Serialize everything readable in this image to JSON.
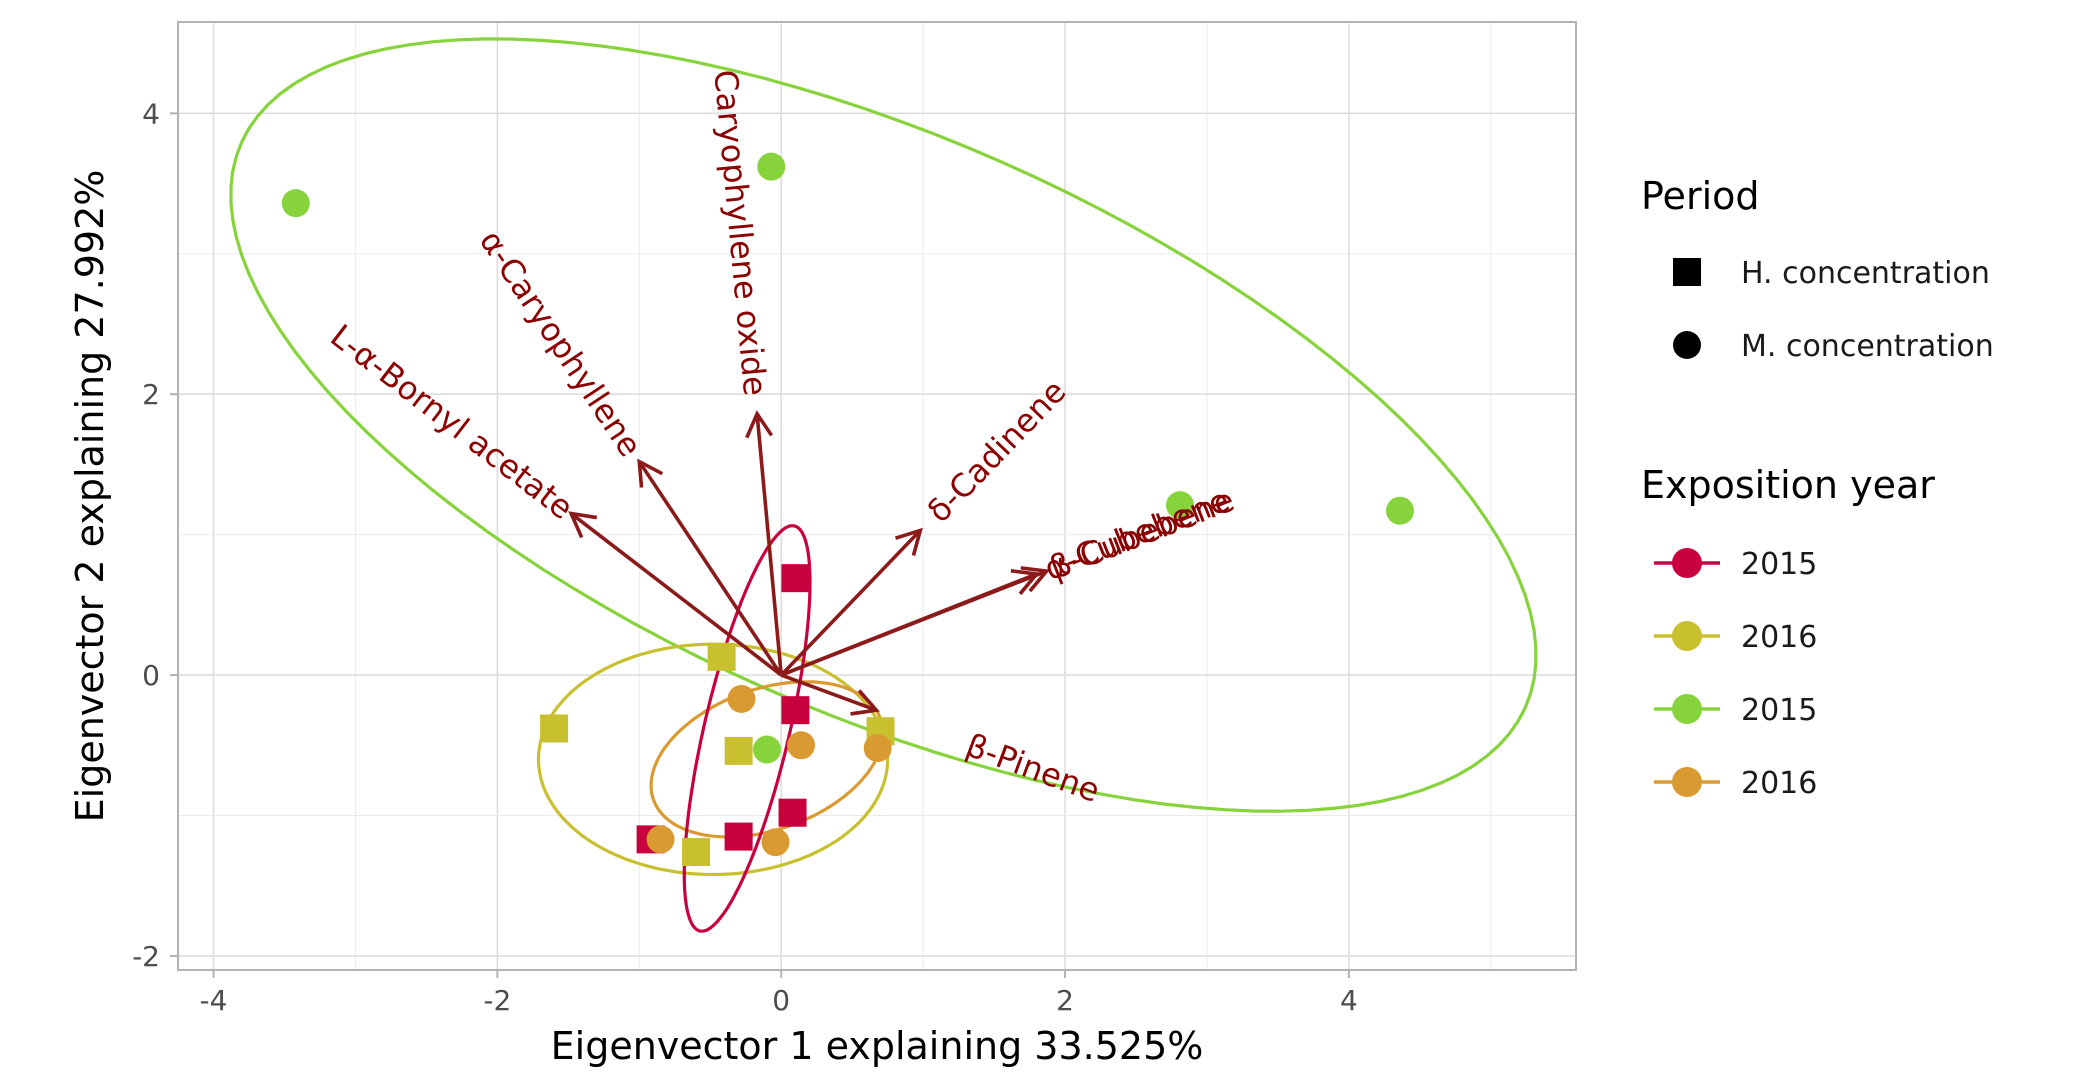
{
  "chart_data": {
    "type": "scatter",
    "subtype": "pca-biplot",
    "title": "",
    "xlabel": "Eigenvector 1 explaining 33.525%",
    "ylabel": "Eigenvector 2 explaining 27.992%",
    "xlim": [
      -4.25,
      5.6
    ],
    "ylim": [
      -2.1,
      4.65
    ],
    "xticks": [
      -4,
      -2,
      0,
      2,
      4
    ],
    "xtick_labels": [
      "-4",
      "-2",
      "0",
      "2",
      "4"
    ],
    "yticks": [
      -2,
      0,
      2,
      4
    ],
    "ytick_labels": [
      "-2",
      "0",
      "2",
      "4"
    ],
    "grid": true,
    "legend_position": "right",
    "loading_color": "#8b1a1a",
    "groups": [
      {
        "label": "2015",
        "color": "#c9003e"
      },
      {
        "label": "2016",
        "color": "#c8c02e"
      },
      {
        "label": "2015",
        "color": "#86d33c"
      },
      {
        "label": "2016",
        "color": "#d89a31"
      }
    ],
    "shapes": [
      {
        "label": "H. concentration",
        "marker": "square"
      },
      {
        "label": "M. concentration",
        "marker": "circle"
      }
    ],
    "points": [
      {
        "x": 0.1,
        "y": 0.69,
        "group": 0,
        "shape": 0
      },
      {
        "x": 0.1,
        "y": -0.25,
        "group": 0,
        "shape": 0
      },
      {
        "x": 0.08,
        "y": -0.98,
        "group": 0,
        "shape": 0
      },
      {
        "x": -0.3,
        "y": -1.15,
        "group": 0,
        "shape": 0
      },
      {
        "x": -0.92,
        "y": -1.17,
        "group": 0,
        "shape": 0
      },
      {
        "x": -0.42,
        "y": 0.13,
        "group": 1,
        "shape": 0
      },
      {
        "x": -1.6,
        "y": -0.38,
        "group": 1,
        "shape": 0
      },
      {
        "x": -0.3,
        "y": -0.54,
        "group": 1,
        "shape": 0
      },
      {
        "x": -0.6,
        "y": -1.26,
        "group": 1,
        "shape": 0
      },
      {
        "x": 0.7,
        "y": -0.4,
        "group": 1,
        "shape": 0
      },
      {
        "x": -3.42,
        "y": 3.36,
        "group": 2,
        "shape": 1
      },
      {
        "x": -0.07,
        "y": 3.62,
        "group": 2,
        "shape": 1
      },
      {
        "x": 2.81,
        "y": 1.21,
        "group": 2,
        "shape": 1
      },
      {
        "x": 4.36,
        "y": 1.17,
        "group": 2,
        "shape": 1
      },
      {
        "x": -0.1,
        "y": -0.53,
        "group": 2,
        "shape": 1
      },
      {
        "x": -0.28,
        "y": -0.17,
        "group": 3,
        "shape": 1
      },
      {
        "x": 0.14,
        "y": -0.5,
        "group": 3,
        "shape": 1
      },
      {
        "x": 0.68,
        "y": -0.52,
        "group": 3,
        "shape": 1
      },
      {
        "x": -0.85,
        "y": -1.17,
        "group": 3,
        "shape": 1
      },
      {
        "x": -0.04,
        "y": -1.19,
        "group": 3,
        "shape": 1
      }
    ],
    "ellipses": [
      {
        "group": 2,
        "cx": 0.72,
        "cy": 1.78,
        "rx": 4.95,
        "ry": 2.05,
        "angle_deg": -24
      },
      {
        "group": 1,
        "cx": -0.48,
        "cy": -0.6,
        "rx": 1.23,
        "ry": 0.82,
        "angle_deg": 0
      },
      {
        "group": 3,
        "cx": -0.1,
        "cy": -0.6,
        "rx": 0.85,
        "ry": 0.5,
        "angle_deg": 20
      },
      {
        "group": 0,
        "cx": -0.24,
        "cy": -0.38,
        "rx": 1.48,
        "ry": 0.3,
        "angle_deg": 77
      }
    ],
    "loadings": [
      {
        "name": "L-α-Bornyl acetate",
        "x": -1.48,
        "y": 1.15
      },
      {
        "name": "α-Caryophyllene",
        "x": -1.0,
        "y": 1.52
      },
      {
        "name": "Caryophyllene oxide",
        "x": -0.17,
        "y": 1.86
      },
      {
        "name": "δ-Cadinene",
        "x": 0.98,
        "y": 1.03
      },
      {
        "name": "β-Cubebene",
        "x": 1.87,
        "y": 0.74
      },
      {
        "name": "α-Cubebene",
        "x": 1.8,
        "y": 0.72
      },
      {
        "name": "β-Pinene",
        "x": 0.67,
        "y": -0.25
      }
    ]
  },
  "legend": {
    "shape_title": "Period",
    "color_title": "Exposition year"
  }
}
